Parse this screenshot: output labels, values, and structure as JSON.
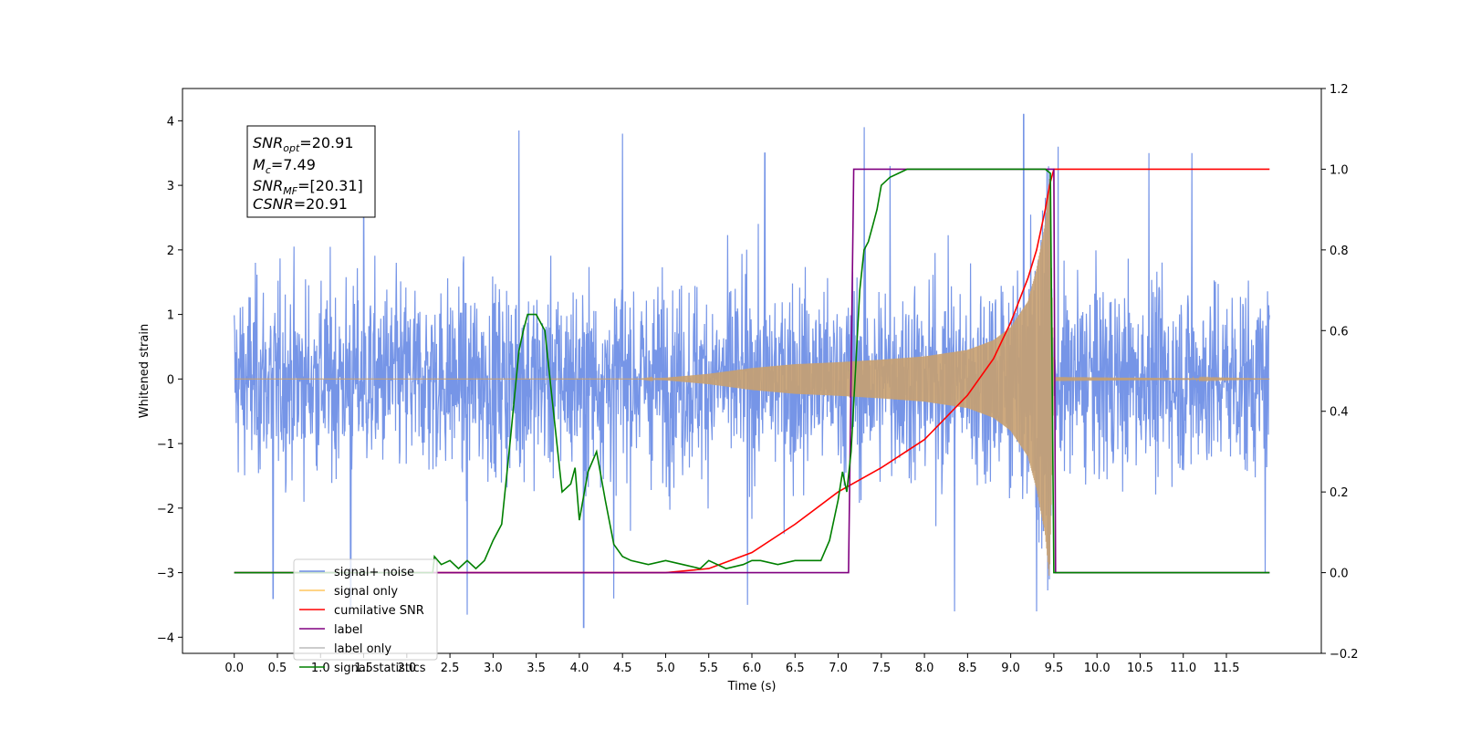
{
  "chart_data": {
    "type": "line",
    "xlabel": "Time (s)",
    "ylabel": "Whitened strain",
    "xlim": [
      -0.6,
      12.6
    ],
    "ylim": [
      -4.25,
      4.5
    ],
    "y2lim": [
      -0.2,
      1.2
    ],
    "x_ticks": [
      "0.0",
      "0.5",
      "1.0",
      "1.5",
      "2.0",
      "2.5",
      "3.0",
      "3.5",
      "4.0",
      "4.5",
      "5.0",
      "5.5",
      "6.0",
      "6.5",
      "7.0",
      "7.5",
      "8.0",
      "8.5",
      "9.0",
      "9.5",
      "10.0",
      "10.5",
      "11.0",
      "11.5"
    ],
    "y_ticks": [
      "4",
      "3",
      "2",
      "1",
      "0",
      "−1",
      "−2",
      "−3",
      "−4"
    ],
    "y2_ticks": [
      "1.2",
      "1.0",
      "0.8",
      "0.6",
      "0.4",
      "0.2",
      "0.0",
      "−0.2"
    ],
    "grid": false,
    "legend_position": "lower-left",
    "annotation": {
      "line1_main": "SNR",
      "line1_sub": "opt",
      "line1_rest": "=20.91",
      "line2_main": "M",
      "line2_sub": "c",
      "line2_rest": "=7.49",
      "line3_main": "SNR",
      "line3_sub": "MF",
      "line3_rest": "=[20.31]",
      "line4_main": "CSNR",
      "line4_rest": "=20.91"
    },
    "legend": [
      {
        "label": "signal+ noise",
        "color": "#6f8fe6"
      },
      {
        "label": "signal only",
        "color": "#ffc55e"
      },
      {
        "label": "cumilative SNR",
        "color": "#ff0000"
      },
      {
        "label": "label",
        "color": "#800080"
      },
      {
        "label": "label only",
        "color": "#bbbbbb"
      },
      {
        "label": "signal statistics",
        "color": "#008000"
      }
    ],
    "series": [
      {
        "name": "signal+ noise",
        "axis": "left",
        "color": "#6f8fe6",
        "description_range": [
          -3.9,
          4.1
        ],
        "x_range": [
          0.0,
          12.0
        ],
        "noise_std": 1.0,
        "spikes": [
          [
            1.5,
            3.75
          ],
          [
            2.7,
            -3.65
          ],
          [
            3.3,
            3.85
          ],
          [
            4.5,
            3.8
          ],
          [
            4.05,
            -3.85
          ],
          [
            7.3,
            3.9
          ],
          [
            9.15,
            4.1
          ],
          [
            9.55,
            3.6
          ],
          [
            9.3,
            -3.6
          ],
          [
            1.35,
            -3.6
          ],
          [
            11.1,
            3.5
          ],
          [
            11.95,
            -3.0
          ],
          [
            0.45,
            -3.4
          ],
          [
            6.15,
            3.5
          ],
          [
            7.6,
            3.3
          ],
          [
            8.35,
            -3.6
          ],
          [
            4.4,
            -3.4
          ],
          [
            10.6,
            3.5
          ],
          [
            5.95,
            -3.5
          ]
        ]
      },
      {
        "name": "signal only",
        "axis": "left",
        "color": "#c8a070",
        "envelope_x": [
          0.0,
          4.7,
          5.0,
          5.5,
          6.0,
          6.5,
          7.0,
          7.5,
          8.0,
          8.5,
          8.8,
          9.0,
          9.2,
          9.3,
          9.4,
          9.45,
          9.5,
          12.0
        ],
        "envelope_y": [
          0.0,
          0.0,
          0.02,
          0.08,
          0.17,
          0.23,
          0.26,
          0.3,
          0.35,
          0.45,
          0.6,
          0.8,
          1.2,
          1.7,
          2.4,
          3.1,
          0.03,
          0.0
        ]
      },
      {
        "name": "cumilative SNR",
        "axis": "right",
        "color": "#ff0000",
        "x": [
          0.0,
          5.0,
          5.5,
          6.0,
          6.5,
          7.0,
          7.5,
          8.0,
          8.5,
          8.8,
          9.0,
          9.2,
          9.3,
          9.4,
          9.45,
          9.5,
          12.0
        ],
        "y": [
          0.0,
          0.0,
          0.01,
          0.05,
          0.12,
          0.2,
          0.26,
          0.33,
          0.44,
          0.53,
          0.62,
          0.73,
          0.8,
          0.9,
          0.96,
          1.0,
          1.0
        ]
      },
      {
        "name": "label",
        "axis": "right",
        "color": "#800080",
        "x": [
          0.0,
          7.12,
          7.18,
          9.5,
          9.52,
          12.0
        ],
        "y": [
          0.0,
          0.0,
          1.0,
          1.0,
          0.0,
          0.0
        ]
      },
      {
        "name": "signal statistics",
        "axis": "right",
        "color": "#008000",
        "x": [
          0.0,
          2.3,
          2.32,
          2.4,
          2.5,
          2.6,
          2.7,
          2.8,
          2.9,
          3.0,
          3.1,
          3.2,
          3.3,
          3.35,
          3.4,
          3.5,
          3.6,
          3.7,
          3.8,
          3.9,
          3.95,
          4.0,
          4.1,
          4.2,
          4.3,
          4.4,
          4.5,
          4.6,
          4.8,
          5.0,
          5.2,
          5.4,
          5.5,
          5.7,
          5.9,
          6.0,
          6.1,
          6.3,
          6.5,
          6.8,
          6.9,
          7.0,
          7.05,
          7.1,
          7.15,
          7.2,
          7.25,
          7.3,
          7.35,
          7.4,
          7.45,
          7.5,
          7.6,
          7.7,
          7.8,
          8.0,
          8.2,
          9.0,
          9.4,
          9.46,
          9.5,
          12.0
        ],
        "y": [
          0.0,
          0.0,
          0.04,
          0.02,
          0.03,
          0.01,
          0.03,
          0.01,
          0.03,
          0.08,
          0.12,
          0.33,
          0.55,
          0.6,
          0.64,
          0.64,
          0.6,
          0.4,
          0.2,
          0.22,
          0.26,
          0.13,
          0.25,
          0.3,
          0.18,
          0.07,
          0.04,
          0.03,
          0.02,
          0.03,
          0.02,
          0.01,
          0.03,
          0.01,
          0.02,
          0.03,
          0.03,
          0.02,
          0.03,
          0.03,
          0.08,
          0.18,
          0.25,
          0.2,
          0.3,
          0.5,
          0.7,
          0.8,
          0.82,
          0.86,
          0.9,
          0.96,
          0.98,
          0.99,
          1.0,
          1.0,
          1.0,
          1.0,
          1.0,
          0.99,
          0.0,
          0.0
        ]
      }
    ]
  }
}
